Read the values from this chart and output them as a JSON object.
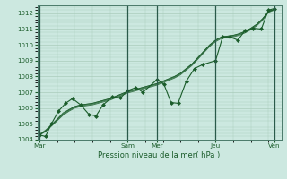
{
  "xlabel": "Pression niveau de la mer( hPa )",
  "bg_color": "#cce8e0",
  "grid_color": "#aaccbb",
  "line_color": "#1a5c2a",
  "marker_color": "#1a5c2a",
  "ylim": [
    1004,
    1012.5
  ],
  "yticks": [
    1004,
    1005,
    1006,
    1007,
    1008,
    1009,
    1010,
    1011,
    1012
  ],
  "xtick_labels": [
    "Mar",
    "Sam",
    "Mer",
    "Jeu",
    "Ven"
  ],
  "xtick_positions": [
    0.0,
    0.375,
    0.5,
    0.75,
    1.0
  ],
  "vline_positions": [
    0.0,
    0.375,
    0.5,
    0.75,
    1.0
  ],
  "smooth_series": [
    [
      1004.3,
      1004.55,
      1004.9,
      1005.3,
      1005.7,
      1005.9,
      1006.1,
      1006.2,
      1006.25,
      1006.3,
      1006.4,
      1006.5,
      1006.6,
      1006.75,
      1006.9,
      1007.05,
      1007.15,
      1007.25,
      1007.35,
      1007.45,
      1007.55,
      1007.7,
      1007.85,
      1008.0,
      1008.2,
      1008.5,
      1008.8,
      1009.2,
      1009.6,
      1010.0,
      1010.3,
      1010.5,
      1010.55,
      1010.6,
      1010.7,
      1010.85,
      1011.05,
      1011.3,
      1011.65,
      1012.1,
      1012.25
    ],
    [
      1004.3,
      1004.55,
      1004.9,
      1005.25,
      1005.6,
      1005.85,
      1006.05,
      1006.15,
      1006.2,
      1006.25,
      1006.35,
      1006.45,
      1006.55,
      1006.7,
      1006.85,
      1007.0,
      1007.1,
      1007.2,
      1007.3,
      1007.4,
      1007.5,
      1007.65,
      1007.8,
      1007.95,
      1008.15,
      1008.45,
      1008.75,
      1009.15,
      1009.55,
      1009.95,
      1010.25,
      1010.45,
      1010.5,
      1010.55,
      1010.65,
      1010.8,
      1011.0,
      1011.25,
      1011.6,
      1012.1,
      1012.25
    ],
    [
      1004.3,
      1004.5,
      1004.85,
      1005.2,
      1005.55,
      1005.8,
      1006.0,
      1006.1,
      1006.15,
      1006.2,
      1006.3,
      1006.4,
      1006.5,
      1006.65,
      1006.8,
      1006.95,
      1007.05,
      1007.15,
      1007.25,
      1007.35,
      1007.45,
      1007.6,
      1007.75,
      1007.9,
      1008.1,
      1008.4,
      1008.7,
      1009.1,
      1009.5,
      1009.9,
      1010.2,
      1010.4,
      1010.45,
      1010.5,
      1010.6,
      1010.75,
      1010.95,
      1011.2,
      1011.55,
      1012.05,
      1012.2
    ],
    [
      1004.35,
      1004.6,
      1004.95,
      1005.3,
      1005.65,
      1005.9,
      1006.1,
      1006.2,
      1006.25,
      1006.3,
      1006.4,
      1006.5,
      1006.6,
      1006.75,
      1006.9,
      1007.05,
      1007.15,
      1007.25,
      1007.35,
      1007.45,
      1007.55,
      1007.7,
      1007.85,
      1008.0,
      1008.2,
      1008.5,
      1008.8,
      1009.2,
      1009.6,
      1010.0,
      1010.3,
      1010.5,
      1010.55,
      1010.6,
      1010.7,
      1010.85,
      1011.05,
      1011.3,
      1011.65,
      1012.1,
      1012.25
    ]
  ],
  "main_series_x": [
    0.0,
    0.025,
    0.05,
    0.08,
    0.11,
    0.14,
    0.175,
    0.21,
    0.24,
    0.27,
    0.31,
    0.345,
    0.375,
    0.41,
    0.44,
    0.5,
    0.53,
    0.56,
    0.59,
    0.625,
    0.66,
    0.695,
    0.75,
    0.78,
    0.81,
    0.845,
    0.875,
    0.91,
    0.945,
    0.975,
    1.0
  ],
  "main_series_y": [
    1004.3,
    1004.2,
    1005.0,
    1005.8,
    1006.3,
    1006.6,
    1006.2,
    1005.6,
    1005.5,
    1006.2,
    1006.7,
    1006.65,
    1007.1,
    1007.3,
    1007.0,
    1007.8,
    1007.5,
    1006.35,
    1006.3,
    1007.7,
    1008.5,
    1008.75,
    1009.0,
    1010.5,
    1010.5,
    1010.3,
    1010.9,
    1011.05,
    1011.0,
    1012.2,
    1012.3
  ]
}
